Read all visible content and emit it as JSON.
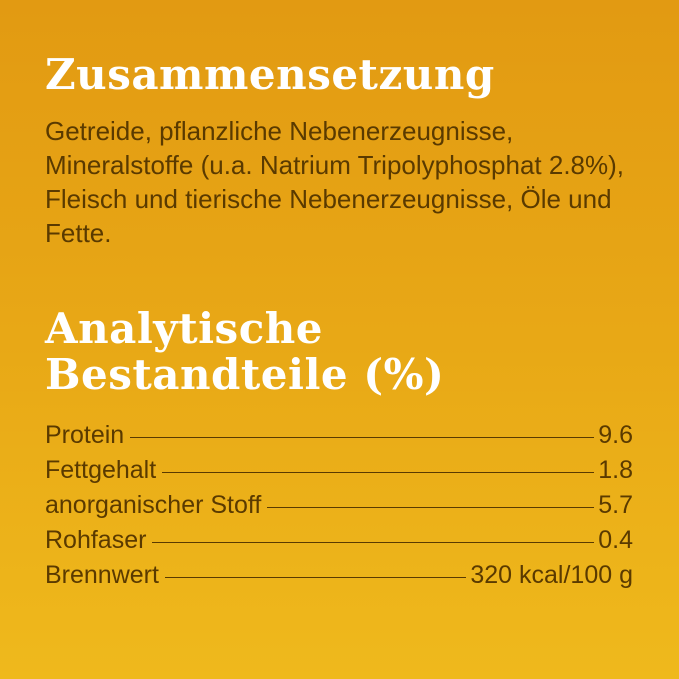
{
  "composition": {
    "title": "Zusammensetzung",
    "text": "Getreide, pflanzliche Nebenerzeugnisse, Mineralstoffe (u.a. Natrium Tripolyphosphat 2.8%), Fleisch und tierische Nebenerzeugnisse, Öle und Fette."
  },
  "analysis": {
    "title_line1": "Analytische",
    "title_line2": "Bestandteile (%)",
    "rows": [
      {
        "label": "Protein",
        "value": "9.6"
      },
      {
        "label": "Fettgehalt",
        "value": "1.8"
      },
      {
        "label": "anorganischer Stoff",
        "value": "5.7"
      },
      {
        "label": "Rohfaser",
        "value": "0.4"
      },
      {
        "label": "Brennwert",
        "value": "320 kcal/100 g"
      }
    ]
  },
  "colors": {
    "background_top": "#e29a12",
    "background_bottom": "#efb91c",
    "heading": "#ffffff",
    "body_text": "#5a3a00"
  }
}
